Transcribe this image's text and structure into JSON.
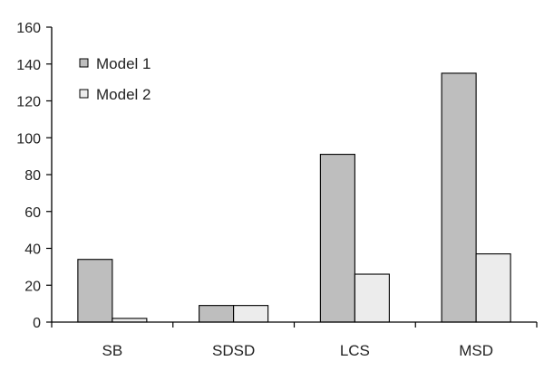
{
  "chart_data": {
    "type": "bar",
    "title": "",
    "xlabel": "",
    "ylabel": "",
    "categories": [
      "SB",
      "SDSD",
      "LCS",
      "MSD"
    ],
    "series": [
      {
        "name": "Model 1",
        "values": [
          34,
          9,
          91,
          135
        ],
        "color": "#bebebe"
      },
      {
        "name": "Model 2",
        "values": [
          2,
          9,
          26,
          37
        ],
        "color": "#ececec"
      }
    ],
    "ylim": [
      0,
      160
    ],
    "yticks": [
      "0",
      "20",
      "40",
      "60",
      "80",
      "100",
      "120",
      "140",
      "160"
    ],
    "grid": false,
    "legend_position": "top-left"
  }
}
